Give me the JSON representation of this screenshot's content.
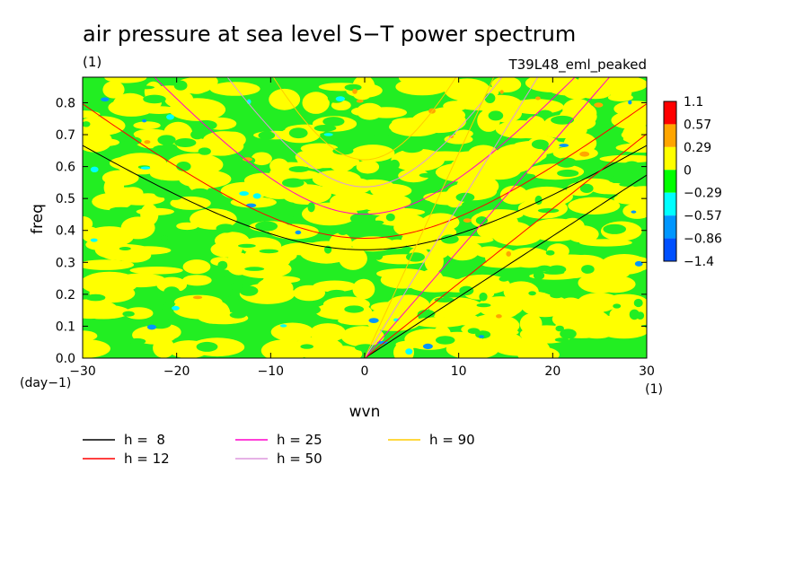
{
  "chart_data": {
    "type": "heatmap",
    "title": "air pressure at sea level S−T power spectrum",
    "title_unit": "(1)",
    "run_label": "T39L48_eml_peaked",
    "xlabel": "wvn",
    "ylabel": "freq",
    "x_unit": "(1)",
    "y_unit": "(day−1)",
    "xlim": [
      -30,
      30
    ],
    "ylim": [
      0,
      0.88
    ],
    "x_ticks": [
      -30,
      -20,
      -10,
      0,
      10,
      20,
      30
    ],
    "x_tick_labels": [
      "−30",
      "−20",
      "−10",
      "0",
      "10",
      "20",
      "30"
    ],
    "y_ticks": [
      0,
      0.1,
      0.2,
      0.3,
      0.4,
      0.5,
      0.6,
      0.7,
      0.8
    ],
    "y_tick_labels": [
      "0.0",
      "0.1",
      "0.2",
      "0.3",
      "0.4",
      "0.5",
      "0.6",
      "0.7",
      "0.8"
    ],
    "colorbar": {
      "levels": [
        "1.1",
        "0.57",
        "0.29",
        "0",
        "−0.29",
        "−0.57",
        "−0.86",
        "−1.4"
      ],
      "colors": [
        "#ff0000",
        "#ffa500",
        "#ffff00",
        "#00ff00",
        "#00ffff",
        "#0096ff",
        "#0050ff"
      ]
    },
    "field_description_colors": {
      "positive": "#ffff00",
      "negative": "#22ee22"
    },
    "dispersion_curves": [
      {
        "label": "h =  8",
        "equivalent_depth": 8,
        "color": "#000000"
      },
      {
        "label": "h = 12",
        "equivalent_depth": 12,
        "color": "#ff0000"
      },
      {
        "label": "h = 25",
        "equivalent_depth": 25,
        "color": "#ff00cc"
      },
      {
        "label": "h = 50",
        "equivalent_depth": 50,
        "color": "#dd99dd"
      },
      {
        "label": "h = 90",
        "equivalent_depth": 90,
        "color": "#ffcc00"
      }
    ]
  }
}
